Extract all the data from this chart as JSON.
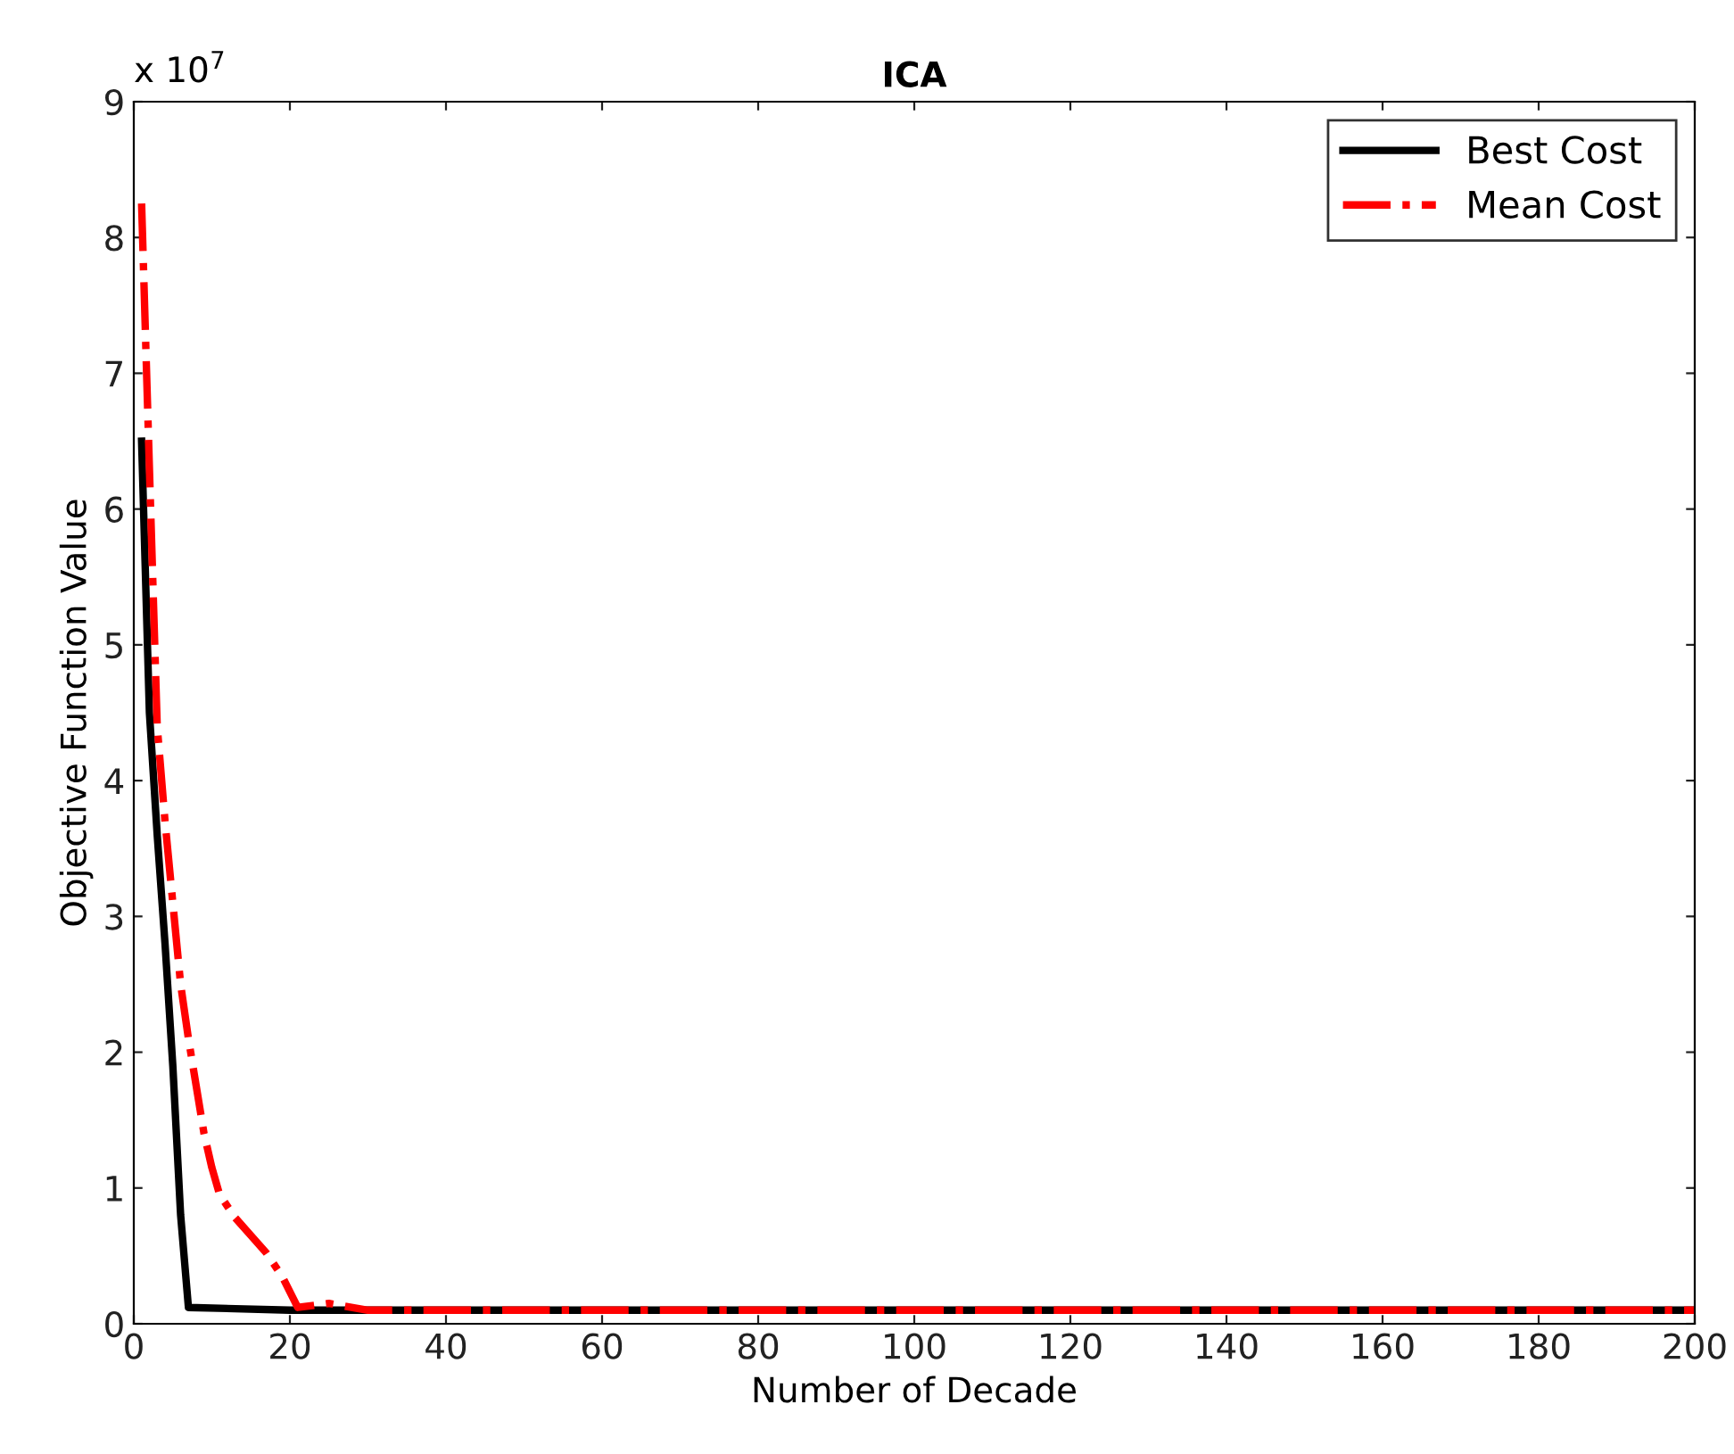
{
  "chart_data": {
    "type": "line",
    "title": "ICA",
    "xlabel": "Number of Decade",
    "ylabel": "Objective Function Value",
    "annotations": [
      "x 10$^{7}$"
    ],
    "xlim": [
      0,
      200
    ],
    "xticks": [
      0,
      20,
      40,
      60,
      80,
      100,
      120,
      140,
      160,
      180,
      200
    ],
    "ylim": [
      0,
      9
    ],
    "yticks": [
      0,
      1,
      2,
      3,
      4,
      5,
      6,
      7,
      8,
      9
    ],
    "grid": false,
    "legend": "top right",
    "series": [
      {
        "name": "Best Cost",
        "color": "#000000",
        "line_style": "solid",
        "x": [
          1,
          2,
          3,
          4,
          5,
          6,
          7,
          20,
          200
        ],
        "values": [
          6.5,
          4.5,
          3.6,
          2.8,
          1.9,
          0.8,
          0.12,
          0.1,
          0.1
        ]
      },
      {
        "name": "Mean Cost",
        "color": "#ff0000",
        "line_style": "dashdot",
        "x": [
          1,
          2,
          3,
          4,
          5,
          6,
          7,
          8,
          9,
          10,
          11,
          13,
          15,
          17,
          19,
          21,
          25,
          30,
          60,
          100,
          150,
          200
        ],
        "values": [
          8.25,
          6.3,
          4.4,
          3.7,
          3.1,
          2.5,
          2.1,
          1.75,
          1.4,
          1.15,
          0.95,
          0.78,
          0.65,
          0.52,
          0.35,
          0.12,
          0.15,
          0.1,
          0.1,
          0.1,
          0.1,
          0.1
        ]
      }
    ]
  }
}
